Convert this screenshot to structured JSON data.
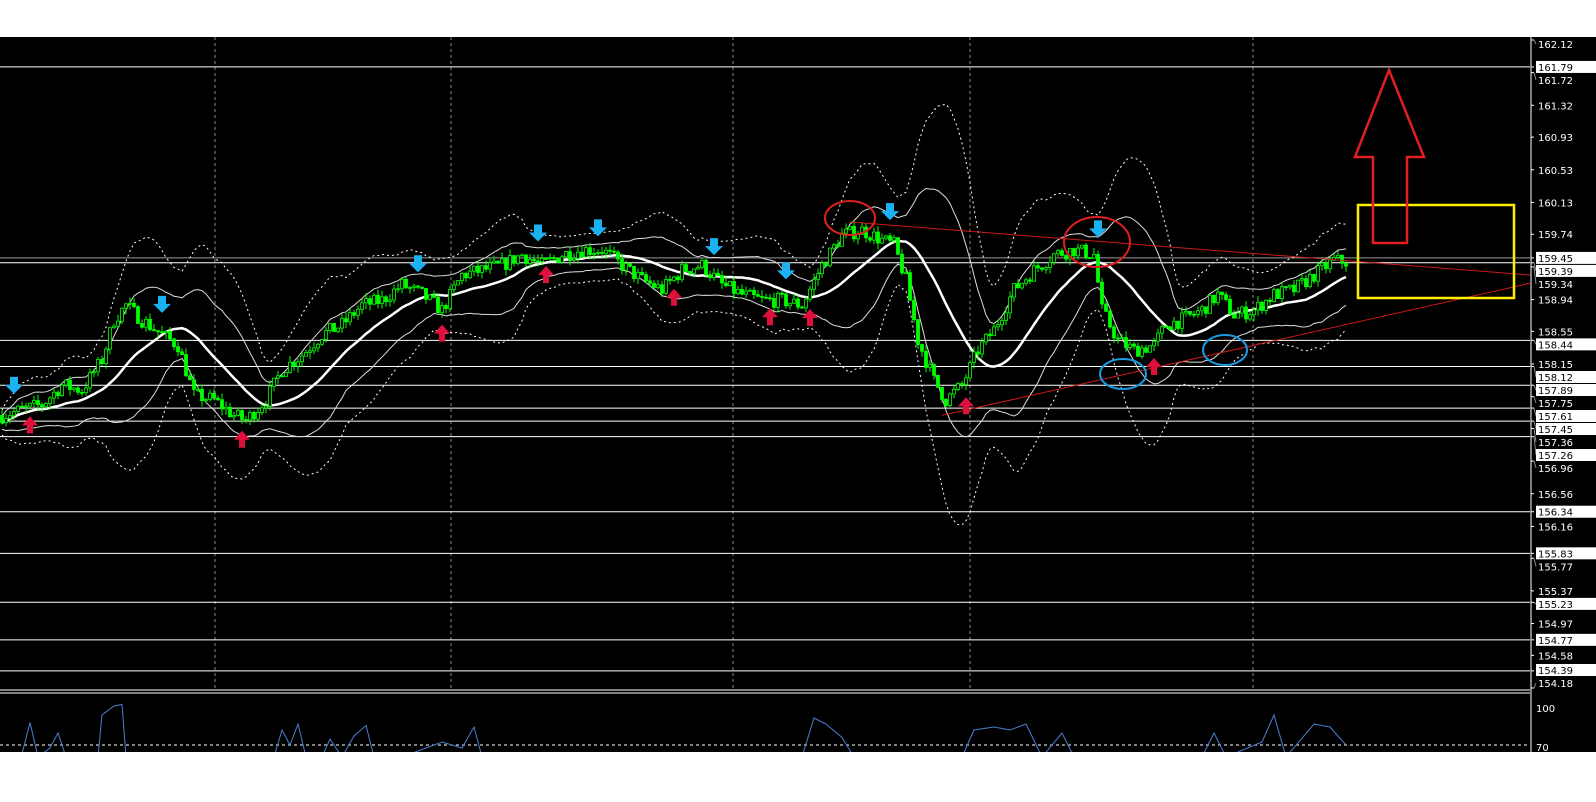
{
  "chart_data": {
    "type": "candlestick",
    "yaxis": {
      "range": [
        154.18,
        162.12
      ],
      "ticks": [
        "162.12",
        "161.72",
        "161.32",
        "160.93",
        "160.53",
        "160.13",
        "159.74",
        "159.34",
        "158.94",
        "158.55",
        "158.15",
        "157.75",
        "157.36",
        "156.96",
        "156.56",
        "156.16",
        "155.77",
        "155.37",
        "154.97",
        "154.58",
        "154.18"
      ]
    },
    "grid": true,
    "price_keypoints": [
      [
        0,
        157.52
      ],
      [
        5,
        157.59
      ],
      [
        10,
        157.65
      ],
      [
        15,
        157.89
      ],
      [
        20,
        157.83
      ],
      [
        25,
        158.2
      ],
      [
        28,
        158.69
      ],
      [
        31,
        158.87
      ],
      [
        35,
        158.69
      ],
      [
        40,
        158.51
      ],
      [
        44,
        158.38
      ],
      [
        48,
        157.77
      ],
      [
        53,
        157.71
      ],
      [
        58,
        157.52
      ],
      [
        61,
        157.46
      ],
      [
        66,
        157.71
      ],
      [
        70,
        158.08
      ],
      [
        75,
        158.26
      ],
      [
        80,
        158.51
      ],
      [
        85,
        158.63
      ],
      [
        90,
        158.87
      ],
      [
        95,
        158.93
      ],
      [
        100,
        159.12
      ],
      [
        105,
        159.0
      ],
      [
        110,
        158.81
      ],
      [
        115,
        159.24
      ],
      [
        120,
        159.3
      ],
      [
        125,
        159.36
      ],
      [
        130,
        159.49
      ],
      [
        135,
        159.36
      ],
      [
        140,
        159.49
      ],
      [
        145,
        159.55
      ],
      [
        150,
        159.55
      ],
      [
        155,
        159.36
      ],
      [
        160,
        159.18
      ],
      [
        165,
        159.06
      ],
      [
        170,
        159.3
      ],
      [
        175,
        159.36
      ],
      [
        180,
        159.12
      ],
      [
        185,
        159.0
      ],
      [
        190,
        158.93
      ],
      [
        195,
        158.93
      ],
      [
        200,
        158.87
      ],
      [
        205,
        159.36
      ],
      [
        210,
        159.73
      ],
      [
        215,
        159.79
      ],
      [
        220,
        159.67
      ],
      [
        223,
        159.61
      ],
      [
        226,
        159.18
      ],
      [
        229,
        158.44
      ],
      [
        233,
        157.95
      ],
      [
        236,
        157.71
      ],
      [
        240,
        157.89
      ],
      [
        244,
        158.32
      ],
      [
        248,
        158.57
      ],
      [
        253,
        159.06
      ],
      [
        258,
        159.3
      ],
      [
        263,
        159.49
      ],
      [
        268,
        159.55
      ],
      [
        273,
        159.49
      ],
      [
        275,
        158.81
      ],
      [
        279,
        158.44
      ],
      [
        283,
        158.32
      ],
      [
        288,
        158.38
      ],
      [
        291,
        158.63
      ],
      [
        295,
        158.69
      ],
      [
        300,
        158.81
      ],
      [
        304,
        159.0
      ],
      [
        308,
        158.75
      ],
      [
        313,
        158.81
      ],
      [
        318,
        159.0
      ],
      [
        323,
        159.06
      ],
      [
        328,
        159.24
      ],
      [
        333,
        159.42
      ],
      [
        336,
        159.4
      ]
    ],
    "horizontal_levels": [
      {
        "price": 161.79,
        "label": "161.79"
      },
      {
        "price": 159.45,
        "label": "159.45"
      },
      {
        "price": 159.39,
        "label": "159.39"
      },
      {
        "price": 158.44,
        "label": "158.44"
      },
      {
        "price": 158.12,
        "label": "158.12"
      },
      {
        "price": 157.89,
        "label": "157.89"
      },
      {
        "price": 157.61,
        "label": "157.61"
      },
      {
        "price": 157.45,
        "label": "157.45"
      },
      {
        "price": 157.26,
        "label": "157.26"
      },
      {
        "price": 156.34,
        "label": "156.34"
      },
      {
        "price": 155.83,
        "label": "155.83"
      },
      {
        "price": 155.23,
        "label": "155.23"
      },
      {
        "price": 154.77,
        "label": "154.77"
      },
      {
        "price": 154.39,
        "label": "154.39"
      }
    ],
    "trendlines": [
      {
        "from": [
          212,
          159.89
        ],
        "to": [
          382,
          159.24
        ]
      },
      {
        "from": [
          235,
          157.52
        ],
        "to": [
          382,
          159.14
        ]
      }
    ],
    "signals": {
      "sell_bars": [
        3,
        40,
        104,
        134,
        149,
        178,
        196,
        222,
        274
      ],
      "buy_bars": [
        7,
        60,
        110,
        136,
        168,
        192,
        202,
        241,
        288
      ]
    },
    "indicator": {
      "ticks": [
        "100",
        "70"
      ],
      "range": [
        70,
        100
      ],
      "level": 70,
      "keypoints": [
        [
          0,
          60
        ],
        [
          5,
          64
        ],
        [
          7,
          85
        ],
        [
          9,
          62
        ],
        [
          12,
          68
        ],
        [
          14,
          78
        ],
        [
          16,
          60
        ],
        [
          24,
          62
        ],
        [
          25,
          90
        ],
        [
          28,
          96
        ],
        [
          30,
          97
        ],
        [
          31,
          62
        ],
        [
          68,
          60
        ],
        [
          70,
          80
        ],
        [
          72,
          70
        ],
        [
          74,
          84
        ],
        [
          76,
          60
        ],
        [
          80,
          62
        ],
        [
          82,
          74
        ],
        [
          85,
          62
        ],
        [
          88,
          76
        ],
        [
          91,
          83
        ],
        [
          93,
          60
        ],
        [
          100,
          60
        ],
        [
          110,
          72
        ],
        [
          115,
          68
        ],
        [
          118,
          82
        ],
        [
          120,
          60
        ],
        [
          200,
          60
        ],
        [
          203,
          88
        ],
        [
          206,
          84
        ],
        [
          210,
          75
        ],
        [
          213,
          60
        ],
        [
          240,
          60
        ],
        [
          243,
          80
        ],
        [
          248,
          82
        ],
        [
          252,
          80
        ],
        [
          256,
          84
        ],
        [
          260,
          60
        ],
        [
          265,
          78
        ],
        [
          268,
          60
        ],
        [
          300,
          60
        ],
        [
          303,
          78
        ],
        [
          306,
          60
        ],
        [
          315,
          72
        ],
        [
          318,
          90
        ],
        [
          321,
          60
        ],
        [
          328,
          84
        ],
        [
          332,
          82
        ],
        [
          336,
          70
        ]
      ]
    },
    "colors": {
      "background": "#000000",
      "bull": "#00ff00",
      "ma": "#ffffff",
      "sell_arrow": "#1ab2f0",
      "buy_arrow": "#e0103c",
      "trendline": "#cc1a1a",
      "indicator": "#4a7fd0",
      "highlight_box": "#ffee00"
    }
  }
}
